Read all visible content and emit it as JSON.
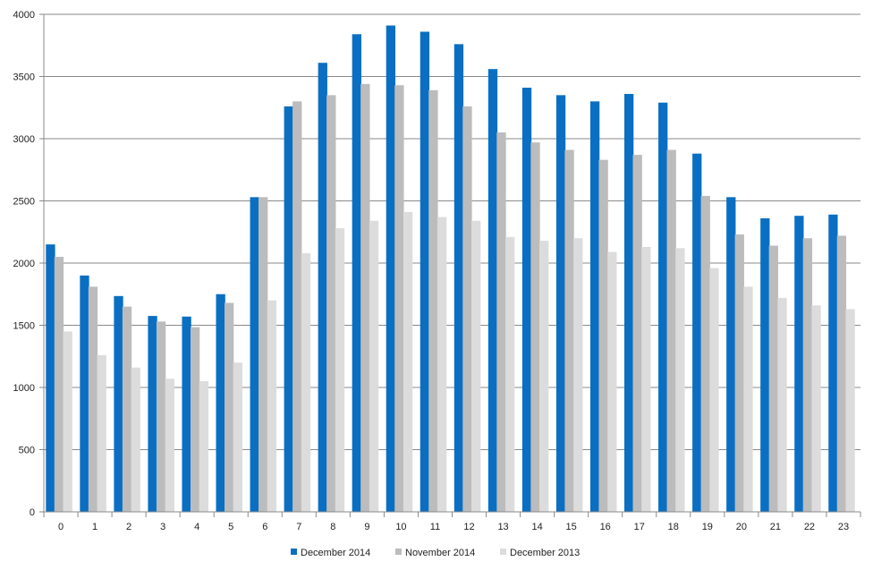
{
  "chart_data": {
    "type": "bar",
    "title": "",
    "xlabel": "",
    "ylabel": "",
    "ylim": [
      0,
      4000
    ],
    "yticks": [
      0,
      500,
      1000,
      1500,
      2000,
      2500,
      3000,
      3500,
      4000
    ],
    "grid": true,
    "legend_position": "bottom",
    "categories": [
      "0",
      "1",
      "2",
      "3",
      "4",
      "5",
      "6",
      "7",
      "8",
      "9",
      "10",
      "11",
      "12",
      "13",
      "14",
      "15",
      "16",
      "17",
      "18",
      "19",
      "20",
      "21",
      "22",
      "23"
    ],
    "series": [
      {
        "name": "December 2014",
        "color": "#0a6fc2",
        "values": [
          2150,
          1900,
          1735,
          1575,
          1570,
          1750,
          2530,
          3260,
          3610,
          3840,
          3910,
          3860,
          3760,
          3560,
          3410,
          3350,
          3300,
          3360,
          3290,
          2880,
          2530,
          2360,
          2380,
          2390
        ]
      },
      {
        "name": "November 2014",
        "color": "#bcbcbc",
        "values": [
          2050,
          1810,
          1650,
          1530,
          1485,
          1680,
          2530,
          3300,
          3350,
          3440,
          3430,
          3390,
          3260,
          3050,
          2970,
          2910,
          2830,
          2870,
          2910,
          2540,
          2230,
          2140,
          2200,
          2220
        ]
      },
      {
        "name": "December 2013",
        "color": "#dcdcdc",
        "values": [
          1450,
          1260,
          1160,
          1070,
          1050,
          1200,
          1700,
          2080,
          2280,
          2340,
          2410,
          2370,
          2340,
          2210,
          2180,
          2200,
          2090,
          2130,
          2120,
          1960,
          1810,
          1720,
          1660,
          1630
        ]
      }
    ]
  }
}
